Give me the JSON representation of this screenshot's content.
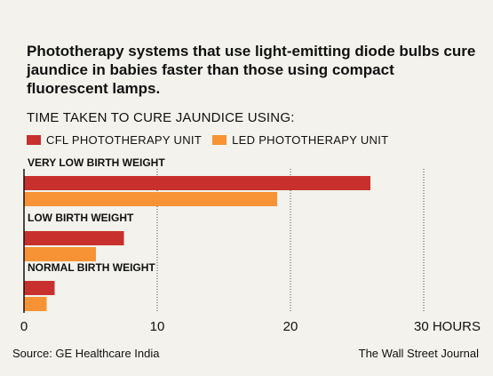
{
  "subtitle": "Phototherapy systems that use light-emitting diode bulbs cure jaundice in babies faster than those using compact fluorescent lamps.",
  "chart_data": {
    "type": "bar",
    "orientation": "horizontal",
    "title": "TIME TAKEN TO CURE JAUNDICE USING:",
    "categories": [
      "VERY LOW BIRTH WEIGHT",
      "LOW BIRTH WEIGHT",
      "NORMAL BIRTH WEIGHT"
    ],
    "series": [
      {
        "name": "CFL PHOTOTHERAPY UNIT",
        "color": "#c7302d",
        "values": [
          26,
          7.5,
          2.3
        ]
      },
      {
        "name": "LED PHOTOTHERAPY UNIT",
        "color": "#f79334",
        "values": [
          19,
          5.4,
          1.7
        ]
      }
    ],
    "x_ticks": [
      "0",
      "10",
      "20",
      "30 HOURS"
    ],
    "xlim": [
      0,
      30
    ],
    "legend_placement": "top-left",
    "grid": "vertical dotted"
  },
  "footer": {
    "source": "Source: GE Healthcare India",
    "publisher": "The Wall Street Journal"
  }
}
